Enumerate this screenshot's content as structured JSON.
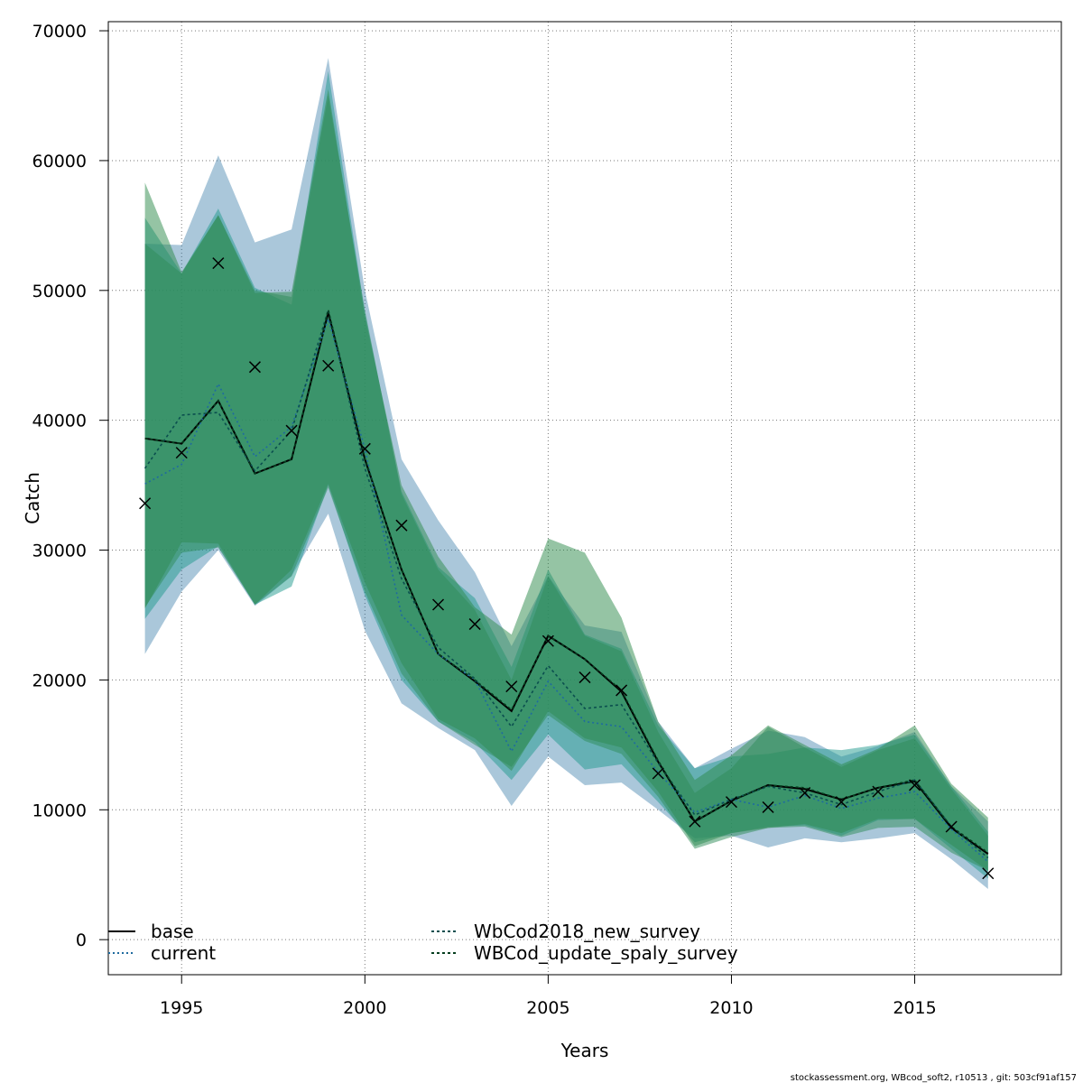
{
  "chart_data": {
    "type": "line",
    "title": "",
    "xlabel": "Years",
    "ylabel": "Catch",
    "xlim": [
      1993,
      2019
    ],
    "ylim": [
      -2700,
      70700
    ],
    "x_ticks": [
      1995,
      2000,
      2005,
      2010,
      2015
    ],
    "y_ticks": [
      0,
      10000,
      20000,
      30000,
      40000,
      50000,
      60000,
      70000
    ],
    "grid": true,
    "legend_placement": "bottom-left",
    "years": [
      1994,
      1995,
      1996,
      1997,
      1998,
      1999,
      2000,
      2001,
      2002,
      2003,
      2004,
      2005,
      2006,
      2007,
      2008,
      2009,
      2010,
      2011,
      2012,
      2013,
      2014,
      2015,
      2016,
      2017
    ],
    "series": [
      {
        "name": "base",
        "line_style": "solid",
        "color": "#000000",
        "fill_color": "#1f6b9f",
        "values": [
          38600,
          38200,
          41500,
          35900,
          37000,
          48300,
          37000,
          28500,
          22000,
          19900,
          17600,
          23400,
          21600,
          19100,
          13700,
          9100,
          10700,
          11900,
          11600,
          10800,
          11700,
          12200,
          8600,
          6600
        ],
        "lower": [
          22000,
          26800,
          30000,
          25700,
          28000,
          32800,
          23800,
          18200,
          16300,
          14600,
          10300,
          14100,
          11900,
          12100,
          10000,
          7800,
          8000,
          7100,
          7800,
          7500,
          7800,
          8200,
          6200,
          3900
        ],
        "upper": [
          53600,
          53500,
          60400,
          53700,
          54700,
          67900,
          50000,
          37000,
          32300,
          28300,
          22600,
          28000,
          24200,
          23700,
          16800,
          13200,
          14700,
          16100,
          15600,
          14100,
          14900,
          16000,
          11800,
          9100
        ]
      },
      {
        "name": "current",
        "line_style": "dotted",
        "color": "#1f6b9f",
        "fill_color": "#1f9a8e",
        "values": [
          35100,
          36600,
          42800,
          37200,
          39500,
          47800,
          37800,
          25000,
          22000,
          20000,
          14500,
          19900,
          16800,
          16400,
          12900,
          9800,
          10800,
          10200,
          11100,
          10100,
          10900,
          11400,
          8500,
          6000
        ],
        "lower": [
          24700,
          28500,
          30300,
          25800,
          27200,
          35000,
          26500,
          20000,
          16800,
          15200,
          12300,
          15800,
          13100,
          13500,
          10600,
          7500,
          8200,
          8700,
          8800,
          8000,
          9200,
          9300,
          7000,
          4700
        ],
        "upper": [
          55600,
          51300,
          56300,
          50200,
          48900,
          66900,
          48300,
          34500,
          28700,
          26300,
          21000,
          28500,
          23500,
          22400,
          16500,
          13200,
          14100,
          14300,
          14800,
          14600,
          15000,
          15800,
          11800,
          8300
        ]
      },
      {
        "name": "WbCod2018_new_survey",
        "line_style": "dashed",
        "color": "#0b4f4f",
        "fill_color": "#2c8a4a",
        "values": [
          36300,
          40400,
          40600,
          36100,
          39200,
          48500,
          36300,
          27800,
          22500,
          20100,
          16400,
          21100,
          17800,
          18100,
          13600,
          9600,
          10800,
          11800,
          11300,
          10400,
          11400,
          12300,
          8700,
          6300
        ],
        "lower": [
          25500,
          30600,
          30500,
          25800,
          28500,
          35100,
          27500,
          21300,
          17000,
          15500,
          13000,
          17600,
          15500,
          14800,
          11400,
          7200,
          8200,
          8600,
          8900,
          8200,
          9300,
          9300,
          7300,
          5300
        ],
        "upper": [
          58300,
          51400,
          55800,
          49800,
          49900,
          65500,
          48000,
          35000,
          29500,
          25600,
          23500,
          30900,
          29800,
          24800,
          16800,
          12300,
          14200,
          16500,
          15000,
          13500,
          14700,
          16500,
          12000,
          9400
        ]
      },
      {
        "name": "WBCod_update_spaly_survey",
        "line_style": "dashed",
        "color": "#053d1e",
        "fill_color": "#2e8b57",
        "values": [
          38600,
          38200,
          41500,
          35900,
          37000,
          48500,
          37100,
          28500,
          22000,
          20000,
          17700,
          23400,
          21600,
          19200,
          13800,
          9100,
          10700,
          11900,
          11700,
          10800,
          11700,
          12300,
          8700,
          6700
        ],
        "lower": [
          25600,
          29800,
          30200,
          25800,
          28000,
          34800,
          26800,
          20500,
          16800,
          15000,
          13300,
          17300,
          15300,
          14300,
          11000,
          7000,
          7900,
          8600,
          8700,
          7900,
          8600,
          8700,
          6700,
          5300
        ],
        "upper": [
          53600,
          51300,
          55800,
          50000,
          49500,
          65000,
          48500,
          34300,
          28500,
          25400,
          20000,
          28000,
          23400,
          22200,
          16000,
          11300,
          13200,
          16400,
          14800,
          13300,
          14600,
          15500,
          11600,
          8000
        ]
      }
    ],
    "observed": {
      "marker": "x",
      "values": [
        33600,
        37500,
        52100,
        44100,
        39200,
        44200,
        37800,
        31900,
        25800,
        24300,
        19500,
        23000,
        20200,
        19200,
        12800,
        9100,
        10600,
        10200,
        11300,
        10600,
        11400,
        11900,
        8700,
        5100
      ]
    }
  },
  "footer": "stockassessment.org, WBcod_soft2, r10513 , git: 503cf91af157"
}
